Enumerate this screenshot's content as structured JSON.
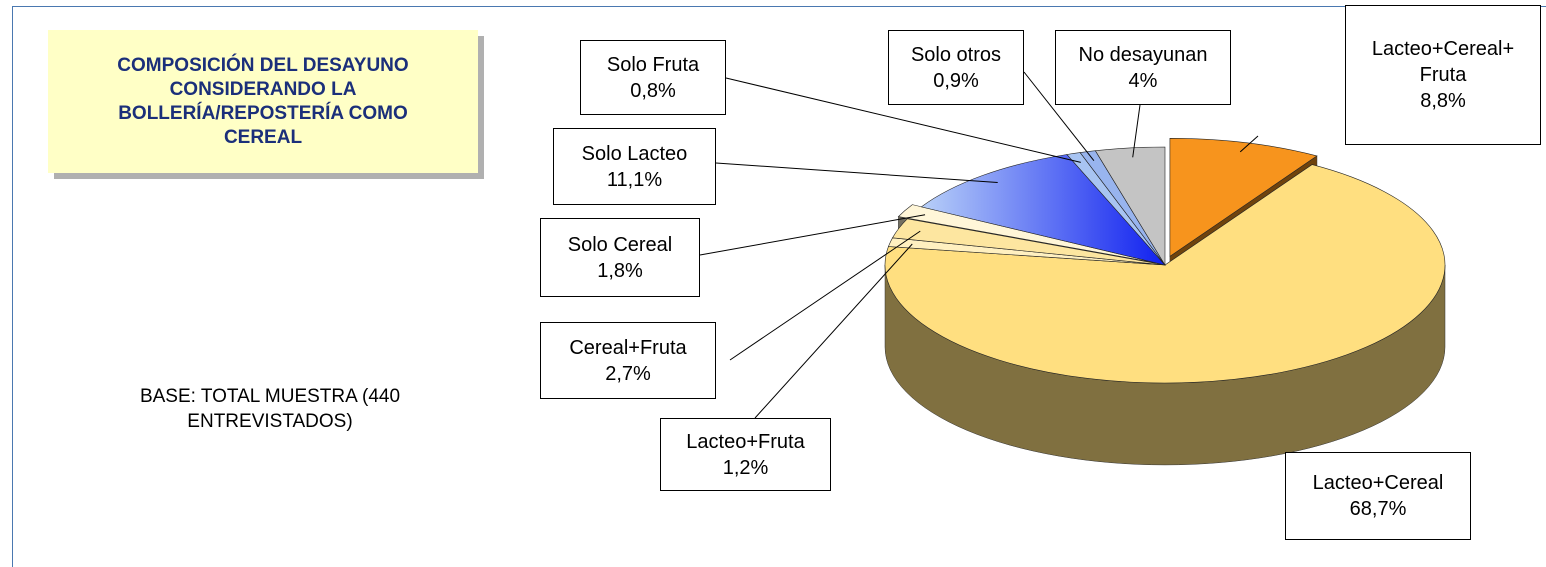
{
  "chart_data": {
    "type": "pie",
    "title": "COMPOSICIÓN DEL DESAYUNO CONSIDERANDO LA BOLLERÍA/REPOSTERÍA COMO CEREAL",
    "subtitle": "BASE: TOTAL MUESTRA (440 ENTREVISTADOS)",
    "categories": [
      "Lacteo+Cereal+ Fruta",
      "Lacteo+Cereal",
      "Lacteo+Fruta",
      "Cereal+Fruta",
      "Solo Cereal",
      "Solo Lacteo",
      "Solo Fruta",
      "Solo otros",
      "No desayunan"
    ],
    "values": [
      8.8,
      68.7,
      1.2,
      2.7,
      1.8,
      11.1,
      0.8,
      0.9,
      4
    ],
    "value_labels": [
      "8,8%",
      "68,7%",
      "1,2%",
      "2,7%",
      "1,8%",
      "11,1%",
      "0,8%",
      "0,9%",
      "4%"
    ],
    "colors": [
      "#f7941d",
      "#ffdf80",
      "#fff0c0",
      "#fde6a0",
      "#fff6d8",
      "#3f63f2",
      "#a8c4f2",
      "#98b4ee",
      "#c4c4c4"
    ]
  }
}
